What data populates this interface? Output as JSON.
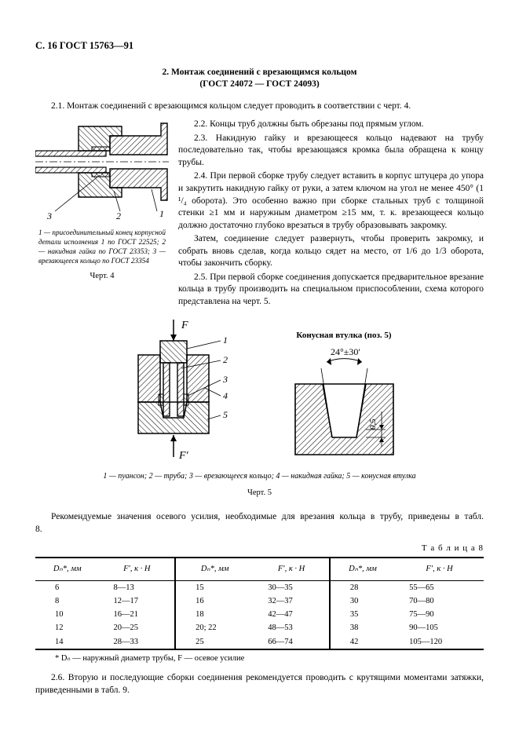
{
  "header": "С. 16 ГОСТ 15763—91",
  "section": {
    "title_lines": [
      "2. Монтаж соединений с врезающимся кольцом",
      "(ГОСТ 24072 — ГОСТ 24093)"
    ]
  },
  "para_2_1": "2.1. Монтаж соединений с врезающимся кольцом следует проводить в соответствии с черт. 4.",
  "para_2_2": "2.2. Концы труб должны быть обрезаны под прямым углом.",
  "para_2_3": "2.3. Накидную гайку и врезающееся кольцо надевают на трубу последовательно так, чтобы врезающаяся кромка была обращена к концу трубы.",
  "para_2_4": "2.4. При первой сборке трубу следует вставить в корпус штуцера до упора и закрутить накидную гайку от руки, а затем ключом на угол не менее 450° (1 ¹/₄ оборота). Это особенно важно при сборке стальных труб с толщиной стенки ≥1 мм и наружным диаметром ≥15 мм, т. к. врезающееся кольцо должно достаточно глубоко врезаться в трубу образовывать закромку.",
  "para_2_4b": "Затем, соединение следует развернуть, чтобы проверить закромку, и собрать вновь сделав, когда кольцо сядет на место, от 1/6 до 1/3 оборота, чтобы закончить сборку.",
  "para_2_5": "2.5. При первой сборке соединения допускается предварительное врезание кольца в трубу производить на специальном приспособлении, схема которого представлена на черт. 5.",
  "fig4": {
    "caption": "1 — присоединительный конец корпусной детали исполнения 1 по ГОСТ 22525; 2 — накидная гайка по ГОСТ 23353; 3 — врезающееся кольцо по ГОСТ 23354",
    "label": "Черт. 4",
    "callouts": {
      "c1": "1",
      "c2": "2",
      "c3": "3"
    }
  },
  "fig5": {
    "title_right": "Конусная втулка (поз. 5)",
    "angle": "24°±30′",
    "dim": "0,5",
    "force_top": "F",
    "force_bottom": "F′",
    "callouts": {
      "c1": "1",
      "c2": "2",
      "c3": "3",
      "c4": "4",
      "c5": "5"
    },
    "caption": "1 — пуансон;   2 — труба;   3 — врезающееся кольцо; 4 — накидная гайка; 5 — конусная втулка",
    "label": "Черт. 5"
  },
  "recommend_para": "Рекомендуемые значения осевого усилия, необходимые для врезания кольца в трубу, приведены в табл. 8.",
  "table8": {
    "label": "Т а б л и ц а  8",
    "headers": {
      "d": "Dₙ*, мм",
      "f": "F′, к · Н"
    },
    "columns": [
      [
        [
          "6",
          "8—13"
        ],
        [
          "8",
          "12—17"
        ],
        [
          "10",
          "16—21"
        ],
        [
          "12",
          "20—25"
        ],
        [
          "14",
          "28—33"
        ]
      ],
      [
        [
          "15",
          "30—35"
        ],
        [
          "16",
          "32—37"
        ],
        [
          "18",
          "42—47"
        ],
        [
          "20; 22",
          "48—53"
        ],
        [
          "25",
          "66—74"
        ]
      ],
      [
        [
          "28",
          "55—65"
        ],
        [
          "30",
          "70—80"
        ],
        [
          "35",
          "75—90"
        ],
        [
          "38",
          "90—105"
        ],
        [
          "42",
          "105—120"
        ]
      ]
    ],
    "footnote": "* Dₙ — наружный диаметр трубы, F — осевое усилие"
  },
  "para_2_6": "2.6. Вторую и последующие сборки соединения рекомендуется проводить с крутящими моментами затяжки, приведенными в табл. 9.",
  "style": {
    "hatch_color": "#000000",
    "line_color": "#000000",
    "bg": "#ffffff"
  }
}
